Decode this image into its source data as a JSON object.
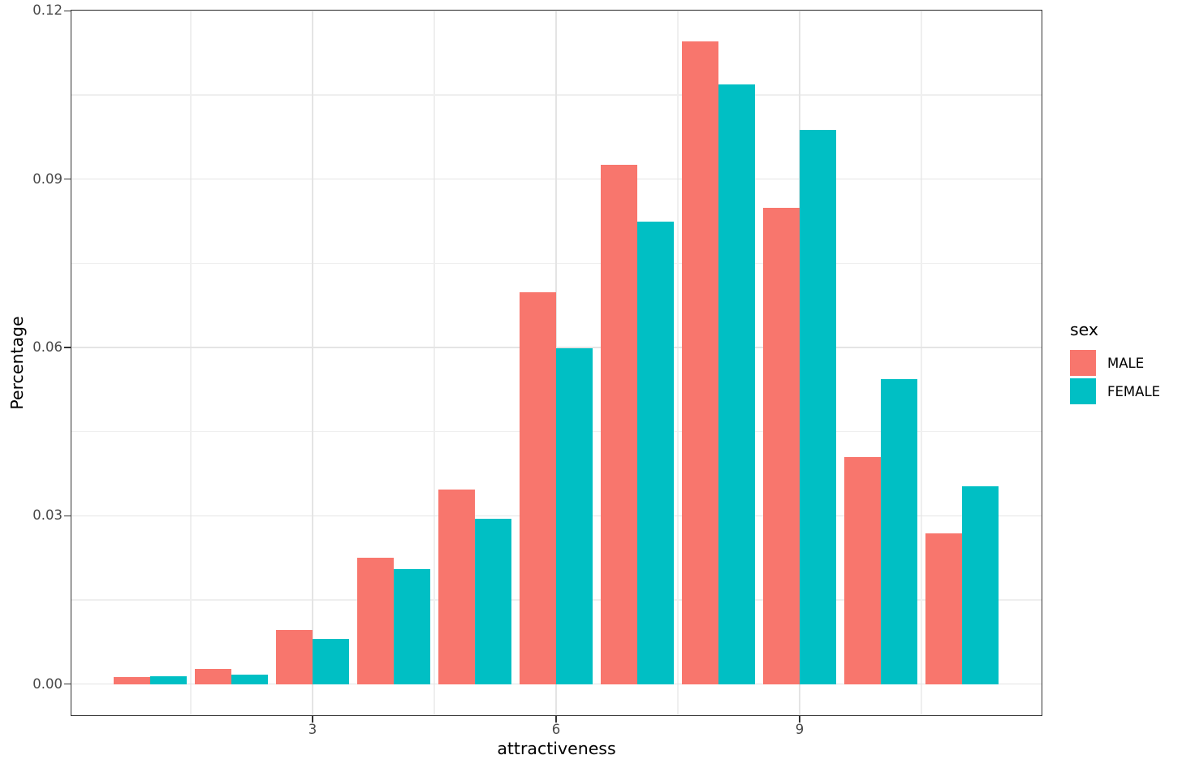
{
  "chart_data": {
    "type": "bar",
    "title": "",
    "xlabel": "attractiveness",
    "ylabel": "Percentage",
    "legend_title": "sex",
    "legend_position": "right",
    "grid": true,
    "categories": [
      1,
      2,
      3,
      4,
      5,
      6,
      7,
      8,
      9,
      10,
      11
    ],
    "series": [
      {
        "name": "MALE",
        "color": "#F8766D",
        "values": [
          0.0013,
          0.0027,
          0.0096,
          0.0225,
          0.0347,
          0.0698,
          0.0925,
          0.1145,
          0.0849,
          0.0404,
          0.0268
        ]
      },
      {
        "name": "FEMALE",
        "color": "#00BFC4",
        "values": [
          0.0014,
          0.0017,
          0.0081,
          0.0205,
          0.0294,
          0.0598,
          0.0824,
          0.1069,
          0.0988,
          0.0544,
          0.0353
        ]
      }
    ],
    "bar_width_units": 0.45,
    "xlim": [
      0.02,
      11.99
    ],
    "ylim": [
      -0.0057,
      0.1202
    ],
    "x_ticks": [
      3,
      6,
      9
    ],
    "x_tick_labels": [
      "3",
      "6",
      "9"
    ],
    "x_minor_breaks": [
      1.5,
      4.5,
      7.5,
      10.5
    ],
    "y_ticks": [
      0,
      0.03,
      0.06,
      0.09,
      0.12
    ],
    "y_tick_labels": [
      "0.00",
      "0.03",
      "0.06",
      "0.09",
      "0.12"
    ],
    "y_minor_breaks": [
      0.015,
      0.045,
      0.075,
      0.105
    ],
    "colors": {
      "male": "#F8766D",
      "female": "#00BFC4",
      "grid_major": "#e4e4e4",
      "grid_minor": "#efefef",
      "panel_border": "#333333",
      "tick_text": "#4a4a4a"
    }
  }
}
